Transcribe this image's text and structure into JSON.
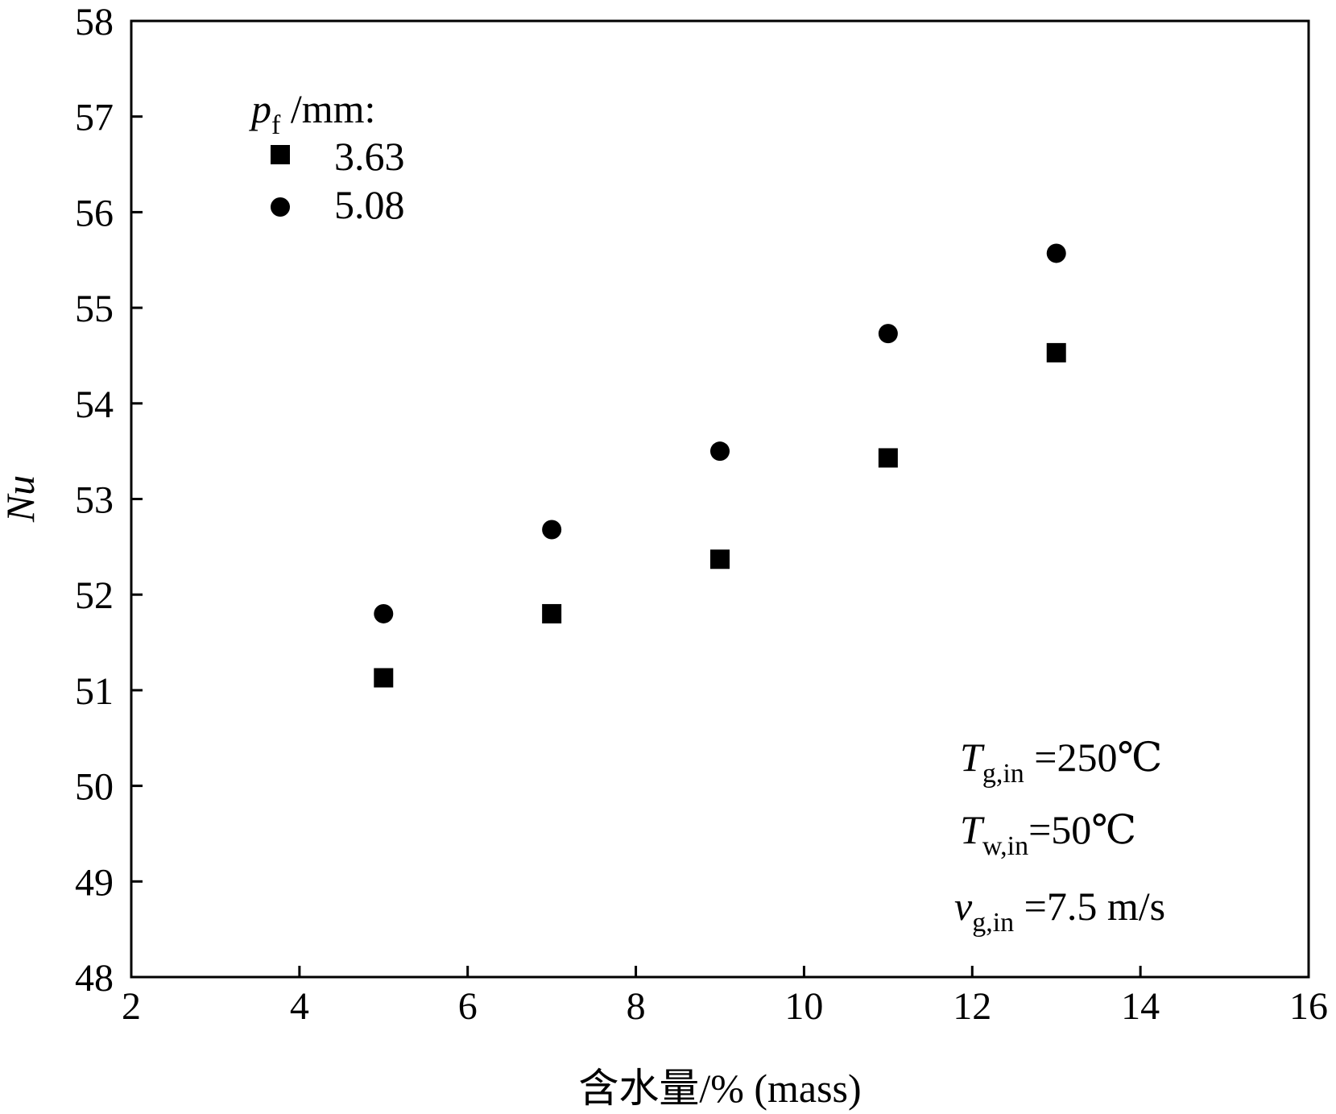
{
  "chart_data": {
    "type": "scatter",
    "title": "",
    "xlabel": "含水量/% (mass)",
    "ylabel": "Nu",
    "xlim": [
      2,
      16
    ],
    "ylim": [
      48,
      58
    ],
    "xticks": [
      2,
      4,
      6,
      8,
      10,
      12,
      14,
      16
    ],
    "yticks": [
      48,
      49,
      50,
      51,
      52,
      53,
      54,
      55,
      56,
      57,
      58
    ],
    "grid": false,
    "legend": {
      "title_symbol": "p",
      "title_sub": "f",
      "title_rest": " /mm:",
      "placement": "top-left"
    },
    "series": [
      {
        "name": "3.63",
        "marker": "square",
        "x": [
          5,
          7,
          9,
          11,
          13
        ],
        "y": [
          51.13,
          51.8,
          52.37,
          53.43,
          54.53
        ]
      },
      {
        "name": "5.08",
        "marker": "circle",
        "x": [
          5,
          7,
          9,
          11,
          13
        ],
        "y": [
          51.8,
          52.68,
          53.5,
          54.73,
          55.57
        ]
      }
    ],
    "annotations": [
      {
        "symbol": "T",
        "sub": "g,in",
        "value": " =250℃"
      },
      {
        "symbol": "T",
        "sub": "w,in",
        "value": "=50℃"
      },
      {
        "symbol": "v",
        "sub": "g,in",
        "value": " =7.5  m/s"
      }
    ]
  }
}
